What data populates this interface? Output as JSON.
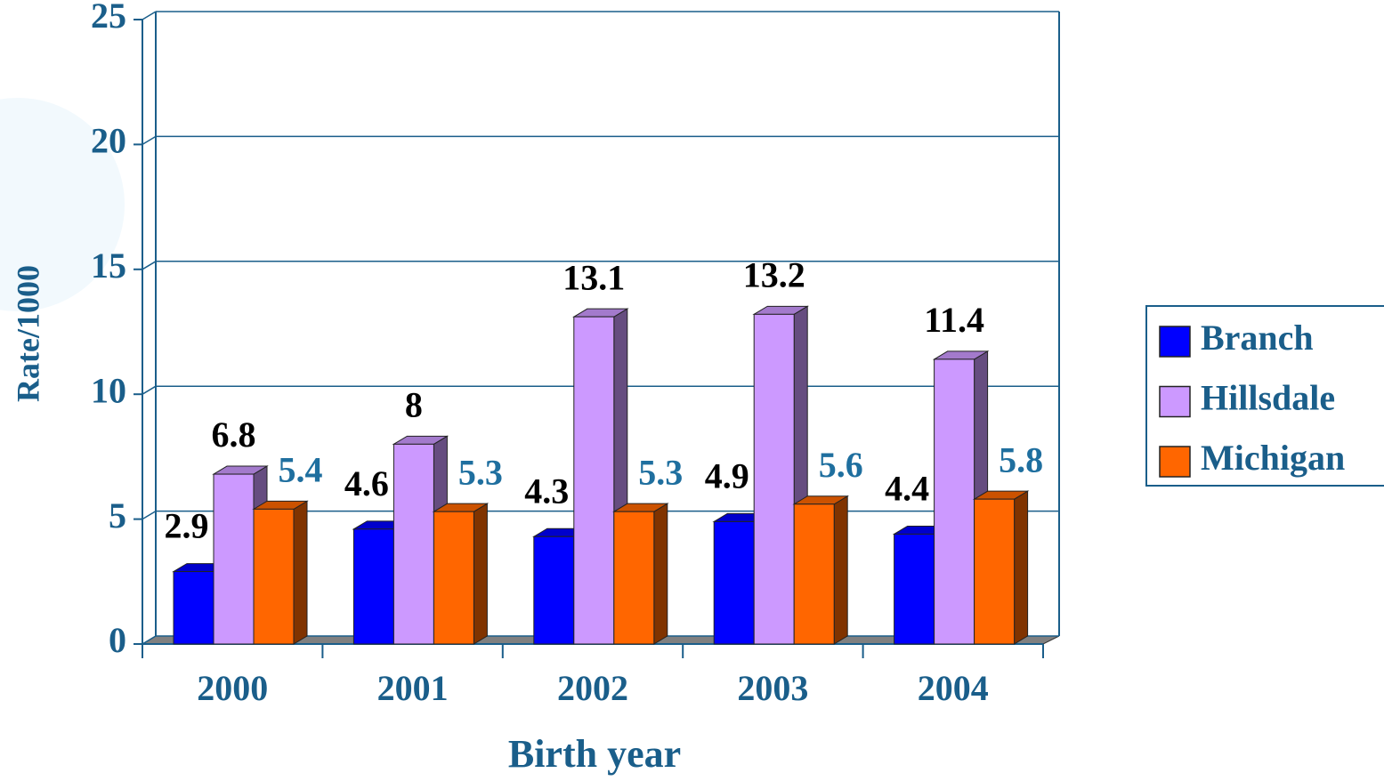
{
  "chart_data": {
    "type": "bar3d",
    "x_label": "Birth year",
    "y_label": "Rate/1000",
    "categories": [
      "2000",
      "2001",
      "2002",
      "2003",
      "2004"
    ],
    "series": [
      {
        "name": "Branch",
        "color": "#0000ff",
        "label_color": "#000000",
        "values": [
          2.9,
          4.6,
          4.3,
          4.9,
          4.4
        ]
      },
      {
        "name": "Hillsdale",
        "color": "#cc99ff",
        "label_color": "#000000",
        "values": [
          6.8,
          8,
          13.1,
          13.2,
          11.4
        ]
      },
      {
        "name": "Michigan",
        "color": "#ff6600",
        "label_color": "#1f6f9f",
        "values": [
          5.4,
          5.3,
          5.3,
          5.6,
          5.8
        ]
      }
    ],
    "ylim": [
      0,
      25
    ],
    "yticks": [
      0,
      5,
      10,
      15,
      20,
      25
    ],
    "grid": true,
    "legend": "right"
  }
}
